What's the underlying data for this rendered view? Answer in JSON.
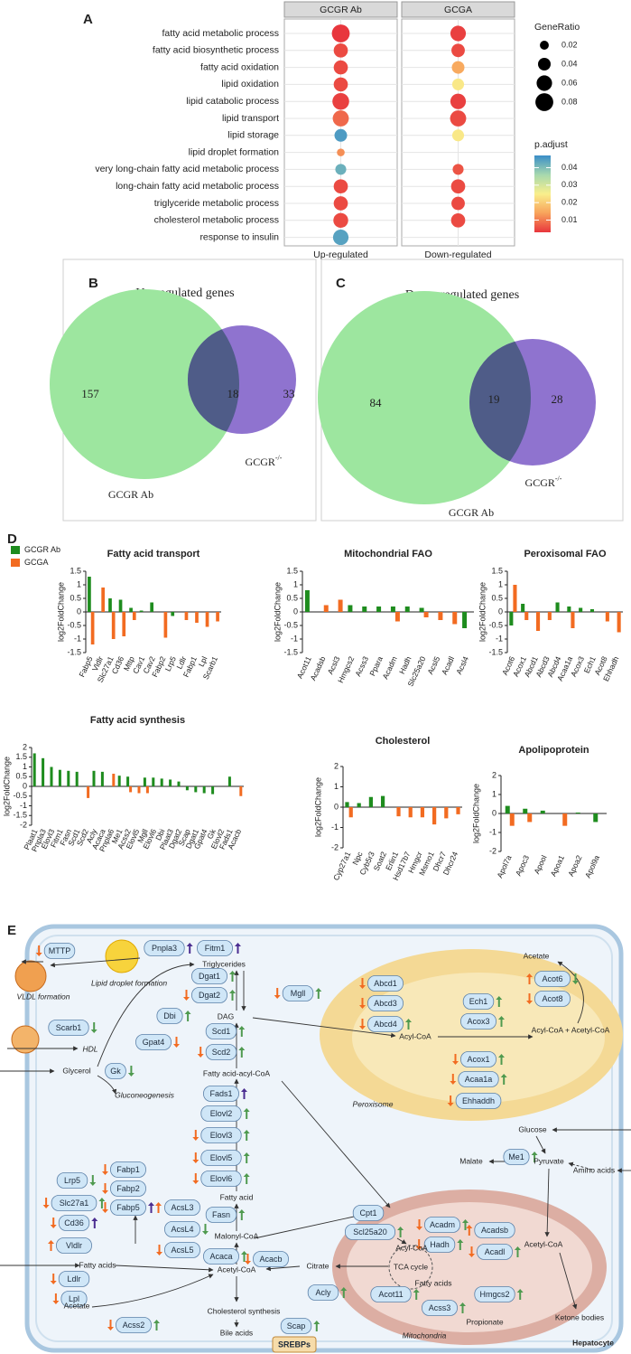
{
  "chart_data": [
    {
      "type": "dot",
      "label": "A",
      "columns": [
        "GCGR Ab",
        "GCGA"
      ],
      "column_labels": [
        "Up-regulated",
        "Down-regulated"
      ],
      "terms": [
        "fatty acid metabolic process",
        "fatty acid biosynthetic process",
        "fatty acid oxidation",
        "lipid oxidation",
        "lipid catabolic process",
        "lipid transport",
        "lipid storage",
        "lipid droplet formation",
        "very long-chain fatty acid metabolic process",
        "long-chain fatty acid metabolic process",
        "triglyceride metabolic process",
        "cholesterol metabolic process",
        "response to insulin"
      ],
      "series": [
        {
          "gene_ratio": [
            0.08,
            0.05,
            0.05,
            0.05,
            0.07,
            0.065,
            0.04,
            0.015,
            0.03,
            0.05,
            0.05,
            0.055,
            0.06
          ],
          "p_adjust": [
            0.003,
            0.005,
            0.005,
            0.005,
            0.004,
            0.008,
            0.045,
            0.012,
            0.042,
            0.005,
            0.005,
            0.005,
            0.044
          ]
        },
        {
          "gene_ratio": [
            0.06,
            0.045,
            0.04,
            0.035,
            0.06,
            0.065,
            0.035,
            null,
            0.03,
            0.05,
            0.045,
            0.05,
            null
          ],
          "p_adjust": [
            0.004,
            0.005,
            0.015,
            0.024,
            0.004,
            0.005,
            0.024,
            null,
            0.006,
            0.005,
            0.005,
            0.005,
            null
          ]
        }
      ],
      "size_legend": {
        "title": "GeneRatio",
        "values": [
          0.02,
          0.04,
          0.06,
          0.08
        ]
      },
      "color_legend": {
        "title": "p.adjust",
        "ticks": [
          0.01,
          0.02,
          0.03,
          0.04
        ],
        "clim": [
          0.003,
          0.047
        ],
        "colors": [
          "#e8363d",
          "#f8a35b",
          "#f9ef8c",
          "#a6d8ae",
          "#3a8ec8"
        ]
      }
    },
    {
      "type": "venn",
      "label": "B",
      "title": "Up-regulated genes",
      "sets": [
        {
          "name": "GCGR Ab"
        },
        {
          "name": "GCGR",
          "sup": "-/-"
        }
      ],
      "values": [
        157,
        18,
        33
      ]
    },
    {
      "type": "venn",
      "label": "C",
      "title": "Down-regulated genes",
      "sets": [
        {
          "name": "GCGR Ab"
        },
        {
          "name": "GCGR",
          "sup": "-/-"
        }
      ],
      "values": [
        84,
        19,
        28
      ]
    },
    {
      "type": "bar_panels",
      "label": "D",
      "ylabel": "log2FoldChange",
      "legend": [
        {
          "name": "GCGR Ab",
          "color": "#1e8c1e"
        },
        {
          "name": "GCGA",
          "color": "#f26b21"
        }
      ],
      "panels": [
        {
          "title": "Fatty acid transport",
          "categories": [
            "Fabp5",
            "Vldlr",
            "Slc27a1",
            "Cd36",
            "Mttp",
            "Cav1",
            "Cav2",
            "Fabp2",
            "Lrp5",
            "Ldlr",
            "Fabp1",
            "Lpl",
            "Scarb1"
          ],
          "series": [
            {
              "values": [
                1.3,
                null,
                0.5,
                0.45,
                0.15,
                0.05,
                0.35,
                null,
                -0.15,
                null,
                null,
                null,
                null
              ]
            },
            {
              "values": [
                -1.2,
                0.9,
                -1.0,
                -0.9,
                -0.3,
                null,
                null,
                -0.95,
                null,
                -0.3,
                -0.4,
                -0.55,
                -0.35
              ]
            }
          ],
          "ylim": [
            -1.5,
            1.5
          ],
          "yticks": [
            -1.5,
            -1,
            -0.5,
            0,
            0.5,
            1,
            1.5
          ]
        },
        {
          "title": "Mitochondrial FAO",
          "categories": [
            "Acot11",
            "Acadsb",
            "Acsl3",
            "Hmgcs2",
            "Acss3",
            "Ppara",
            "Acadm",
            "Hadh",
            "Slc25a20",
            "Acsl5",
            "Acadl",
            "Acsl4"
          ],
          "series": [
            {
              "values": [
                0.8,
                null,
                null,
                0.25,
                0.2,
                0.2,
                0.2,
                0.2,
                0.15,
                null,
                null,
                -0.6
              ]
            },
            {
              "values": [
                null,
                0.25,
                0.45,
                null,
                null,
                null,
                -0.35,
                null,
                -0.2,
                -0.3,
                -0.45,
                null
              ]
            }
          ],
          "ylim": [
            -1.5,
            1.5
          ],
          "yticks": [
            -1.5,
            -1,
            -0.5,
            0,
            0.5,
            1,
            1.5
          ]
        },
        {
          "title": "Peroxisomal FAO",
          "categories": [
            "Acot6",
            "Acox1",
            "Abcd1",
            "Abcd3",
            "Abcd4",
            "Acaa1a",
            "Acox3",
            "Ech1",
            "Acot8",
            "Ehhadh"
          ],
          "series": [
            {
              "values": [
                -0.5,
                0.3,
                null,
                null,
                0.35,
                0.2,
                0.15,
                0.1,
                null,
                null
              ]
            },
            {
              "values": [
                1.0,
                -0.3,
                -0.7,
                -0.3,
                null,
                -0.6,
                null,
                null,
                -0.35,
                -0.75
              ]
            }
          ],
          "ylim": [
            -1.5,
            1.5
          ],
          "yticks": [
            -1.5,
            -1,
            -0.5,
            0,
            0.5,
            1,
            1.5
          ]
        },
        {
          "title": "Fatty acid synthesis",
          "categories": [
            "Plaat1",
            "Pnpla3",
            "Elovl3",
            "Fitm1",
            "Fasn",
            "Scd1",
            "Scd2",
            "Acly",
            "Acaca",
            "Pnpla6",
            "Me1",
            "Acss2",
            "Elovl5",
            "Mgll",
            "Elovl6",
            "Dbi",
            "Plaat3",
            "Dgat2",
            "Scap",
            "Dgat1",
            "Gpat4",
            "Gk",
            "Elovl2",
            "Fads1",
            "Acacb"
          ],
          "series": [
            {
              "values": [
                1.7,
                1.45,
                1.0,
                0.85,
                0.8,
                0.75,
                null,
                0.8,
                0.75,
                null,
                0.55,
                0.5,
                null,
                0.45,
                0.45,
                0.4,
                0.35,
                0.25,
                -0.2,
                -0.3,
                -0.35,
                -0.4,
                null,
                0.5,
                null
              ]
            },
            {
              "values": [
                null,
                null,
                null,
                null,
                null,
                null,
                -0.6,
                null,
                null,
                0.65,
                null,
                -0.3,
                -0.35,
                -0.35,
                null,
                null,
                null,
                null,
                null,
                null,
                null,
                null,
                null,
                null,
                -0.5
              ]
            }
          ],
          "ylim": [
            -2,
            2
          ],
          "yticks": [
            -2,
            -1.5,
            -1,
            -0.5,
            0,
            0.5,
            1,
            1.5,
            2
          ]
        },
        {
          "title": "Cholesterol",
          "categories": [
            "Cyp27a1",
            "Npc",
            "Cyb5r3",
            "Soat2",
            "Erlin1",
            "Hsd17b7",
            "Hmgcr",
            "Msmo1",
            "Dhcr7",
            "Dhcr24"
          ],
          "series": [
            {
              "values": [
                0.25,
                0.2,
                0.5,
                0.55,
                null,
                null,
                null,
                null,
                null,
                null
              ]
            },
            {
              "values": [
                -0.5,
                null,
                null,
                null,
                -0.45,
                -0.5,
                -0.5,
                -0.85,
                -0.55,
                -0.35
              ]
            }
          ],
          "ylim": [
            -2,
            2
          ],
          "yticks": [
            -2,
            -1,
            0,
            1,
            2
          ]
        },
        {
          "title": "Apolipoprotein",
          "categories": [
            "Apol7a",
            "Apoc3",
            "Apool",
            "Apoa1",
            "Apoa2",
            "Apol9a"
          ],
          "series": [
            {
              "values": [
                0.4,
                0.25,
                0.15,
                null,
                0.05,
                -0.45
              ]
            },
            {
              "values": [
                -0.65,
                -0.45,
                null,
                -0.65,
                null,
                null
              ]
            }
          ],
          "ylim": [
            -2,
            2
          ],
          "yticks": [
            -2,
            -1,
            0,
            1,
            2
          ]
        }
      ]
    }
  ],
  "diagram": {
    "label": "E",
    "genes": [
      "MTTP",
      "Pnpla3",
      "Fitm1",
      "Dgat1",
      "Dgat2",
      "Mgll",
      "Dbi",
      "Scd1",
      "Scd2",
      "Scarb1",
      "Gpat4",
      "Gk",
      "Fads1",
      "Elovl2",
      "Elovl3",
      "Elovl5",
      "Elovl6",
      "Fasn",
      "Acaca",
      "Acacb",
      "Cpt1",
      "Scl25a20",
      "Acly",
      "Scap",
      "Acss2",
      "Lrp5",
      "Slc27a1",
      "Cd36",
      "Vldlr",
      "Ldlr",
      "Lpl",
      "Fabp1",
      "Fabp2",
      "Fabp5",
      "AcsL3",
      "AcsL4",
      "AcsL5",
      "Abcd1",
      "Abcd3",
      "Abcd4",
      "Ech1",
      "Acox3",
      "Acot6",
      "Acot8",
      "Acox1",
      "Acaa1a",
      "Ehhaddh",
      "Me1",
      "Acadm",
      "Hadh",
      "Acadsb",
      "Acadl",
      "Acot11",
      "Acss3",
      "Hmgcs2"
    ],
    "complex": "SREBPs",
    "labels": [
      "VLDL formation",
      "Lipid droplet formation",
      "HDL",
      "Triglycerides",
      "DAG",
      "Glycerol",
      "Gluconeogenesis",
      "Fatty acid-acyl-CoA",
      "Fatty acid",
      "Malonyl-CoA",
      "Fatty acids",
      "Acetate",
      "Acetyl-CoA",
      "Citrate",
      "Cholesterol synthesis",
      "Bile acids",
      "Peroxisome",
      "Acetate",
      "Acyl-CoA",
      "Acyl-CoA + Acetyl-CoA",
      "Glucose",
      "Malate",
      "Pyruvate",
      "Amino acids",
      "Acyl-CoA",
      "TCA cycle",
      "Fatty acids",
      "Acetyl-CoA",
      "Propionate",
      "Ketone bodies",
      "Mitochondria"
    ],
    "cell": "Hepatocyte"
  }
}
